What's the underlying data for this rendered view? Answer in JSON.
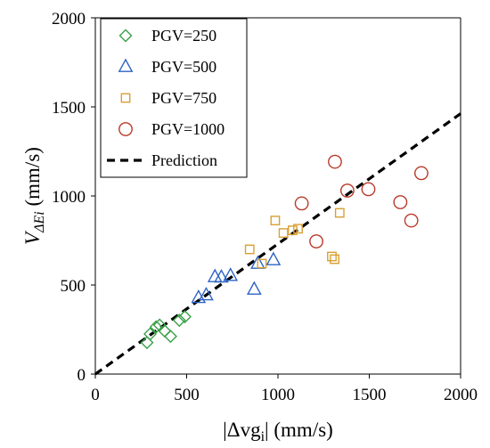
{
  "chart_data": {
    "type": "scatter",
    "xlabel": "|Δvg",
    "xlabel_sub": "i",
    "xlabel_tail": "| (mm/s)",
    "ylabel": "V",
    "ylabel_sub": "ΔEi",
    "ylabel_tail": " (mm/s)",
    "xlim": [
      0,
      2000
    ],
    "ylim": [
      0,
      2000
    ],
    "xticks": [
      "0",
      "500",
      "1000",
      "1500",
      "2000"
    ],
    "yticks": [
      "0",
      "500",
      "1000",
      "1500",
      "2000"
    ],
    "grid": false,
    "legend_position": "top-left",
    "series": [
      {
        "name": "PGV=250",
        "marker": "diamond",
        "color": "#3aa048",
        "points": [
          [
            283,
            177
          ],
          [
            300,
            225
          ],
          [
            333,
            265
          ],
          [
            352,
            275
          ],
          [
            380,
            242
          ],
          [
            412,
            212
          ],
          [
            460,
            302
          ],
          [
            490,
            322
          ]
        ]
      },
      {
        "name": "PGV=500",
        "marker": "triangle",
        "color": "#2e63c4",
        "points": [
          [
            565,
            428
          ],
          [
            607,
            443
          ],
          [
            655,
            545
          ],
          [
            690,
            543
          ],
          [
            740,
            552
          ],
          [
            870,
            475
          ],
          [
            890,
            620
          ],
          [
            975,
            640
          ]
        ]
      },
      {
        "name": "PGV=750",
        "marker": "square",
        "color": "#d9a032",
        "points": [
          [
            845,
            700
          ],
          [
            912,
            620
          ],
          [
            985,
            862
          ],
          [
            1030,
            792
          ],
          [
            1080,
            807
          ],
          [
            1110,
            816
          ],
          [
            1295,
            660
          ],
          [
            1310,
            645
          ],
          [
            1338,
            905
          ]
        ]
      },
      {
        "name": "PGV=1000",
        "marker": "circle",
        "color": "#b83a2a",
        "points": [
          [
            1130,
            958
          ],
          [
            1210,
            745
          ],
          [
            1312,
            1192
          ],
          [
            1380,
            1030
          ],
          [
            1495,
            1038
          ],
          [
            1670,
            965
          ],
          [
            1730,
            862
          ],
          [
            1785,
            1128
          ]
        ]
      },
      {
        "name": "Prediction",
        "marker": "dashed-line",
        "color": "#000000",
        "line": [
          [
            0,
            0
          ],
          [
            2000,
            1462
          ]
        ]
      }
    ]
  }
}
